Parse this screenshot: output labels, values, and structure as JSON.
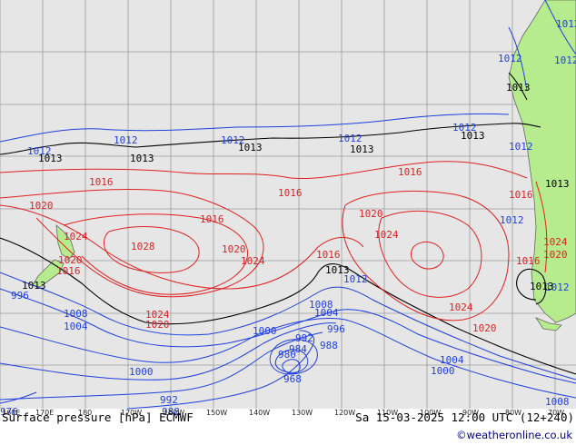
{
  "map": {
    "colors": {
      "ocean": "#e6e6e6",
      "land": "#b7ec8e",
      "grid": "#9a9a9a",
      "isobar_low": "#1f3fe0",
      "isobar_high": "#e02020",
      "isobar_1013": "#000000",
      "coast": "#666666"
    },
    "lon_ticks": [
      "160E",
      "170E",
      "180",
      "170W",
      "160W",
      "150W",
      "140W",
      "130W",
      "120W",
      "110W",
      "100W",
      "90W",
      "80W",
      "70W"
    ],
    "isobar_labels": [
      {
        "text": "1012",
        "color": "blue"
      },
      {
        "text": "1012",
        "color": "blue"
      },
      {
        "text": "1012",
        "color": "blue"
      },
      {
        "text": "1012",
        "color": "blue"
      },
      {
        "text": "1012",
        "color": "blue"
      },
      {
        "text": "1012",
        "color": "blue"
      },
      {
        "text": "1013",
        "color": "black"
      },
      {
        "text": "1013",
        "color": "black"
      },
      {
        "text": "1013",
        "color": "black"
      },
      {
        "text": "1013",
        "color": "black"
      },
      {
        "text": "1013",
        "color": "black"
      },
      {
        "text": "1013",
        "color": "black"
      },
      {
        "text": "1013",
        "color": "black"
      },
      {
        "text": "1013",
        "color": "black"
      },
      {
        "text": "1013",
        "color": "black"
      },
      {
        "text": "1016",
        "color": "red"
      },
      {
        "text": "1016",
        "color": "red"
      },
      {
        "text": "1016",
        "color": "red"
      },
      {
        "text": "1016",
        "color": "red"
      },
      {
        "text": "1016",
        "color": "red"
      },
      {
        "text": "1016",
        "color": "red"
      },
      {
        "text": "1016",
        "color": "red"
      },
      {
        "text": "1020",
        "color": "red"
      },
      {
        "text": "1020",
        "color": "red"
      },
      {
        "text": "1020",
        "color": "red"
      },
      {
        "text": "1020",
        "color": "red"
      },
      {
        "text": "1020",
        "color": "red"
      },
      {
        "text": "1020",
        "color": "red"
      },
      {
        "text": "1024",
        "color": "red"
      },
      {
        "text": "1024",
        "color": "red"
      },
      {
        "text": "1024",
        "color": "red"
      },
      {
        "text": "1024",
        "color": "red"
      },
      {
        "text": "1024",
        "color": "red"
      },
      {
        "text": "1028",
        "color": "red"
      },
      {
        "text": "1008",
        "color": "blue"
      },
      {
        "text": "1008",
        "color": "blue"
      },
      {
        "text": "1008",
        "color": "blue"
      },
      {
        "text": "1004",
        "color": "blue"
      },
      {
        "text": "1004",
        "color": "blue"
      },
      {
        "text": "1004",
        "color": "blue"
      },
      {
        "text": "1000",
        "color": "blue"
      },
      {
        "text": "1000",
        "color": "blue"
      },
      {
        "text": "1000",
        "color": "blue"
      },
      {
        "text": "996",
        "color": "blue"
      },
      {
        "text": "996",
        "color": "blue"
      },
      {
        "text": "992",
        "color": "blue"
      },
      {
        "text": "992",
        "color": "blue"
      },
      {
        "text": "988",
        "color": "blue"
      },
      {
        "text": "988",
        "color": "blue"
      },
      {
        "text": "984",
        "color": "blue"
      },
      {
        "text": "980",
        "color": "blue"
      },
      {
        "text": "976",
        "color": "blue"
      },
      {
        "text": "968",
        "color": "blue"
      },
      {
        "text": "1012",
        "color": "blue"
      },
      {
        "text": "1012",
        "color": "blue"
      },
      {
        "text": "1012",
        "color": "blue"
      },
      {
        "text": "1012",
        "color": "blue"
      },
      {
        "text": "1024",
        "color": "red"
      },
      {
        "text": "1020",
        "color": "red"
      },
      {
        "text": "1016",
        "color": "red"
      },
      {
        "text": "1013",
        "color": "black"
      },
      {
        "text": "1012",
        "color": "blue"
      },
      {
        "text": "1012",
        "color": "blue"
      }
    ]
  },
  "caption": {
    "left": "Surface pressure [hPa] ECMWF",
    "right": "Sa 15-03-2025 12:00 UTC (12+240)"
  },
  "credit": "©weatheronline.co.uk"
}
